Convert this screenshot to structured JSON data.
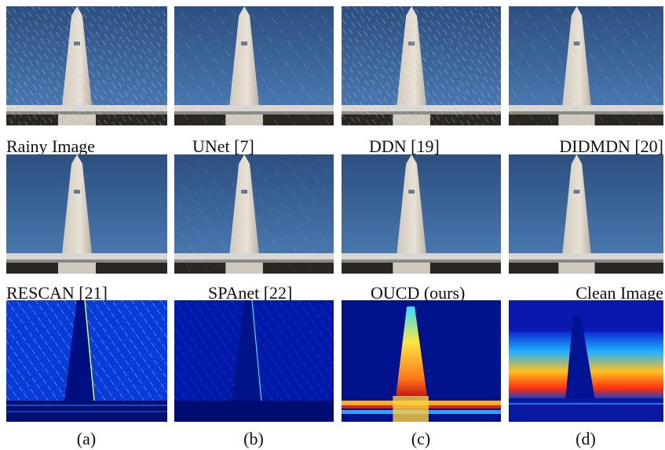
{
  "captions": [
    [
      "Rainy Image",
      "UNet [7]",
      "DDN [19]",
      "DIDMDN [20]"
    ],
    [
      "RESCAN [21]",
      "SPAnet [22]",
      "OUCD (ours)",
      "Clean Image"
    ]
  ],
  "labels": [
    "(a)",
    "(b)",
    "(c)",
    "(d)"
  ]
}
